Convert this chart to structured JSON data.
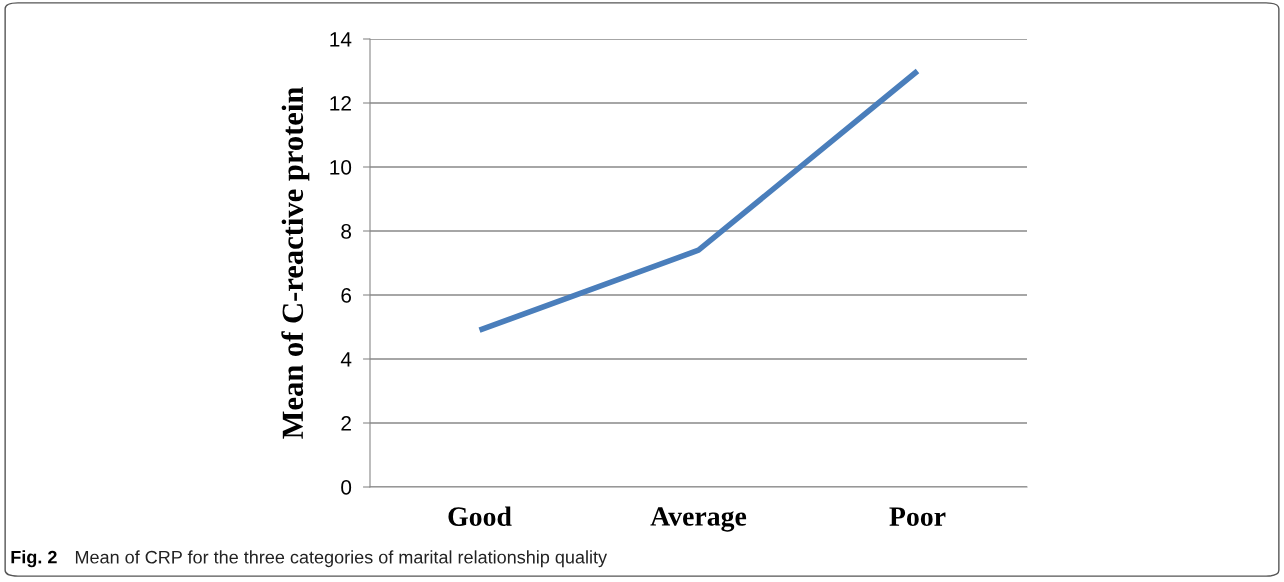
{
  "chart_data": {
    "type": "line",
    "ylabel": "Mean of C-reactive protein",
    "categories": [
      "Good",
      "Average",
      "Poor"
    ],
    "series": [
      {
        "color": "#4a7ebb",
        "values": [
          4.9,
          7.4,
          13.0
        ]
      }
    ],
    "ylim": [
      0,
      14
    ],
    "yticks": [
      0,
      2,
      4,
      6,
      8,
      10,
      12,
      14
    ],
    "grid": "y",
    "marker": "none",
    "line_style": "solid",
    "annotations": [
      "Fig. 2",
      "Mean of CRP for the three categories of marital relationship quality"
    ]
  }
}
